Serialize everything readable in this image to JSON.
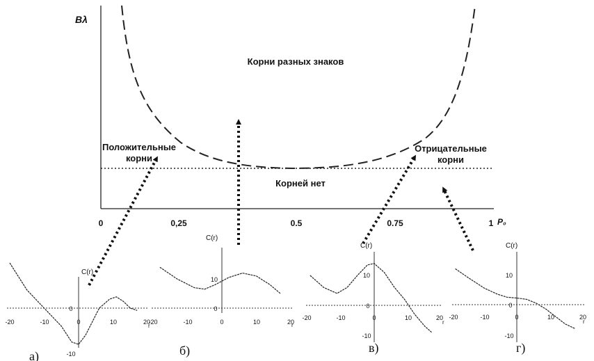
{
  "main": {
    "ylabel": "Bλ",
    "xlabel": "P₀",
    "xticks": [
      "0",
      "0,25",
      "0.5",
      "0.75",
      "1"
    ],
    "region_top": "Корни разных знаков",
    "region_left_1": "Положительные",
    "region_left_2": "корни",
    "region_right_1": "Отрицательные",
    "region_right_2": "корни",
    "region_bottom": "Корней нет"
  },
  "panels": [
    {
      "label": "а)",
      "ylabel": "C(r)",
      "xlabel": "r",
      "xticks": [
        "-20",
        "-10",
        "0",
        "10",
        "20"
      ],
      "yticks": [
        "0",
        "-10"
      ],
      "curve": [
        [
          -20,
          10
        ],
        [
          -15,
          4
        ],
        [
          -10,
          0
        ],
        [
          -5,
          -4
        ],
        [
          -2,
          -7.5
        ],
        [
          0,
          -8
        ],
        [
          2,
          -6
        ],
        [
          6,
          0
        ],
        [
          9,
          2
        ],
        [
          11,
          2.5
        ],
        [
          13,
          1.5
        ],
        [
          15,
          0
        ],
        [
          17,
          -0.5
        ]
      ]
    },
    {
      "label": "б)",
      "ylabel": "C(r)",
      "xlabel": "r",
      "xticks": [
        "-20",
        "-10",
        "0",
        "10",
        "20"
      ],
      "yticks": [
        "0",
        "10"
      ],
      "curve": [
        [
          -18,
          14
        ],
        [
          -13,
          10
        ],
        [
          -8,
          7
        ],
        [
          -5,
          6.5
        ],
        [
          -2,
          8
        ],
        [
          2,
          10.5
        ],
        [
          6,
          12
        ],
        [
          10,
          11
        ],
        [
          14,
          8
        ],
        [
          17,
          5
        ]
      ]
    },
    {
      "label": "в)",
      "ylabel": "C(r)",
      "xlabel": "r",
      "xticks": [
        "-20",
        "-10",
        "0",
        "10",
        "20"
      ],
      "yticks": [
        "10",
        "0",
        "-10"
      ],
      "curve": [
        [
          -19,
          10
        ],
        [
          -15,
          6
        ],
        [
          -11,
          4
        ],
        [
          -8,
          6
        ],
        [
          -5,
          10
        ],
        [
          -2,
          13.5
        ],
        [
          0,
          14
        ],
        [
          3,
          11
        ],
        [
          6,
          6
        ],
        [
          9,
          2
        ],
        [
          12,
          -3
        ],
        [
          15,
          -7
        ],
        [
          17,
          -9
        ]
      ]
    },
    {
      "label": "г)",
      "ylabel": "C(r)",
      "xlabel": "r",
      "xticks": [
        "-20",
        "-10",
        "0",
        "10",
        "20"
      ],
      "yticks": [
        "10",
        "0",
        "-10"
      ],
      "curve": [
        [
          -19,
          12
        ],
        [
          -15,
          9
        ],
        [
          -10,
          5.5
        ],
        [
          -6,
          3.5
        ],
        [
          -3,
          2.5
        ],
        [
          0,
          2.2
        ],
        [
          3,
          1.8
        ],
        [
          6,
          0.5
        ],
        [
          9,
          -1.5
        ],
        [
          12,
          -4
        ],
        [
          15,
          -6.5
        ],
        [
          18,
          -8
        ]
      ]
    }
  ]
}
